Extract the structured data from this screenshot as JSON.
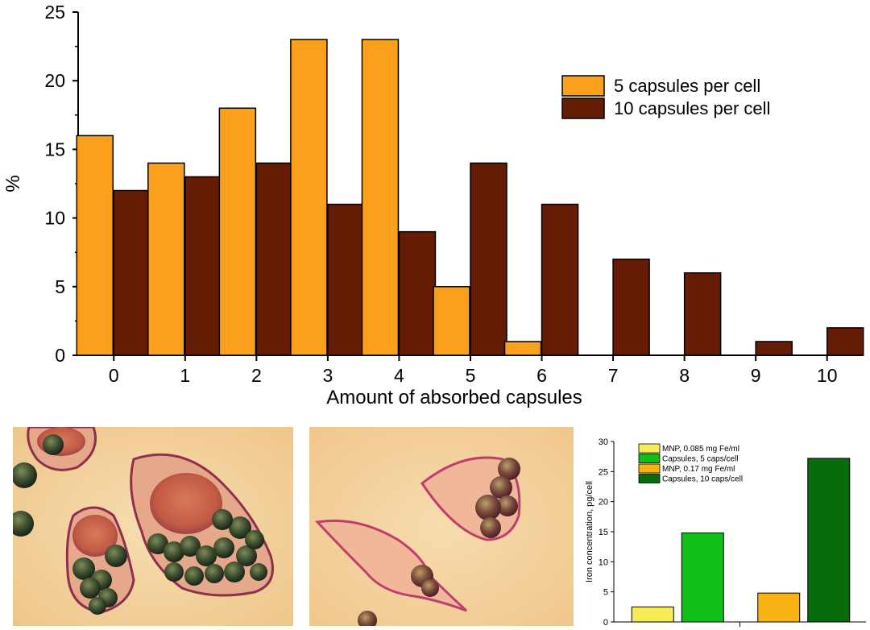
{
  "chart_data": [
    {
      "type": "bar",
      "title": "",
      "xlabel": "Amount of absorbed capsules",
      "ylabel": "%",
      "ylim": [
        0,
        25
      ],
      "yticks": [
        0,
        5,
        10,
        15,
        20,
        25
      ],
      "categories": [
        "0",
        "1",
        "2",
        "3",
        "4",
        "5",
        "6",
        "7",
        "8",
        "9",
        "10"
      ],
      "series": [
        {
          "name": "5 capsules per cell",
          "color": "#fb9f1d",
          "values": [
            16,
            14,
            18,
            23,
            23,
            5,
            1,
            0,
            0,
            0,
            0
          ]
        },
        {
          "name": "10 capsules per cell",
          "color": "#661b04",
          "values": [
            12,
            13,
            14,
            11,
            9,
            14,
            11,
            7,
            6,
            1,
            2
          ]
        }
      ],
      "legend": "top-right"
    },
    {
      "type": "bar",
      "title": "",
      "xlabel": "",
      "ylabel": "Iron concentration, pg/cell",
      "ylim": [
        0,
        30
      ],
      "yticks": [
        0,
        5,
        10,
        15,
        20,
        25,
        30
      ],
      "groups": 2,
      "series": [
        {
          "name": "MNP, 0.085 mg Fe/ml",
          "color": "#f8ec56",
          "group": 0,
          "value": 2.5
        },
        {
          "name": "Capsules, 5 caps/cell",
          "color": "#0ebf17",
          "group": 0,
          "value": 14.8
        },
        {
          "name": "MNP, 0.17 mg Fe/ml",
          "color": "#f9b414",
          "group": 1,
          "value": 4.8
        },
        {
          "name": "Capsules, 10 caps/cell",
          "color": "#066c0c",
          "group": 1,
          "value": 27.2
        }
      ],
      "legend": "top-left"
    }
  ],
  "images": {
    "micrograph_left": "micrograph-cells-5-capsules",
    "micrograph_right": "micrograph-cells-10-capsules"
  }
}
